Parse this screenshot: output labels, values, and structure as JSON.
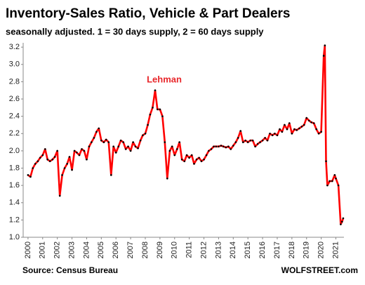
{
  "chart_data": {
    "type": "line",
    "title": "Inventory-Sales Ratio, Vehicle & Part Dealers",
    "subtitle": "seasonally adjusted. 1 = 30 days supply, 2 = 60 days supply",
    "source": "Source: Census Bureau",
    "brand": "WOLFSTREET.com",
    "annotation": "Lehman",
    "x": [
      2000,
      2000.17,
      2000.33,
      2000.5,
      2000.67,
      2000.83,
      2001,
      2001.17,
      2001.33,
      2001.5,
      2001.67,
      2001.83,
      2002,
      2002.17,
      2002.33,
      2002.5,
      2002.67,
      2002.83,
      2003,
      2003.17,
      2003.33,
      2003.5,
      2003.67,
      2003.83,
      2004,
      2004.17,
      2004.33,
      2004.5,
      2004.67,
      2004.83,
      2005,
      2005.17,
      2005.33,
      2005.5,
      2005.67,
      2005.83,
      2006,
      2006.17,
      2006.33,
      2006.5,
      2006.67,
      2006.83,
      2007,
      2007.17,
      2007.33,
      2007.5,
      2007.67,
      2007.83,
      2008,
      2008.17,
      2008.33,
      2008.5,
      2008.67,
      2008.83,
      2009,
      2009.17,
      2009.33,
      2009.5,
      2009.67,
      2009.83,
      2010,
      2010.17,
      2010.33,
      2010.5,
      2010.67,
      2010.83,
      2011,
      2011.17,
      2011.33,
      2011.5,
      2011.67,
      2011.83,
      2012,
      2012.17,
      2012.33,
      2012.5,
      2012.67,
      2012.83,
      2013,
      2013.17,
      2013.33,
      2013.5,
      2013.67,
      2013.83,
      2014,
      2014.17,
      2014.33,
      2014.5,
      2014.67,
      2014.83,
      2015,
      2015.17,
      2015.33,
      2015.5,
      2015.67,
      2015.83,
      2016,
      2016.17,
      2016.33,
      2016.5,
      2016.67,
      2016.83,
      2017,
      2017.17,
      2017.33,
      2017.5,
      2017.67,
      2017.83,
      2018,
      2018.17,
      2018.33,
      2018.5,
      2018.67,
      2018.83,
      2019,
      2019.17,
      2019.33,
      2019.5,
      2019.67,
      2019.83,
      2020,
      2020.17,
      2020.25,
      2020.33,
      2020.42,
      2020.58,
      2020.75,
      2020.92,
      2021,
      2021.17,
      2021.33,
      2021.42,
      2021.5
    ],
    "series": [
      {
        "name": "Inventory-Sales Ratio",
        "color": "#ff0000",
        "values": [
          1.72,
          1.7,
          1.8,
          1.85,
          1.88,
          1.92,
          1.95,
          2.02,
          1.9,
          1.88,
          1.9,
          1.93,
          2.0,
          1.48,
          1.72,
          1.8,
          1.85,
          1.93,
          1.78,
          2.0,
          1.98,
          1.95,
          2.02,
          2.0,
          1.9,
          2.05,
          2.1,
          2.15,
          2.22,
          2.26,
          2.12,
          2.1,
          2.13,
          2.1,
          1.72,
          2.05,
          1.98,
          2.05,
          2.12,
          2.1,
          2.02,
          2.05,
          2.0,
          2.1,
          2.05,
          2.03,
          2.12,
          2.18,
          2.2,
          2.3,
          2.42,
          2.5,
          2.7,
          2.48,
          2.48,
          2.4,
          2.1,
          1.68,
          2.0,
          2.05,
          1.95,
          2.02,
          2.1,
          1.9,
          1.88,
          1.95,
          1.92,
          1.95,
          1.85,
          1.9,
          1.92,
          1.88,
          1.9,
          1.95,
          2.0,
          2.02,
          2.05,
          2.05,
          2.05,
          2.06,
          2.05,
          2.04,
          2.05,
          2.02,
          2.06,
          2.1,
          2.15,
          2.23,
          2.1,
          2.12,
          2.1,
          2.12,
          2.12,
          2.05,
          2.08,
          2.1,
          2.12,
          2.15,
          2.12,
          2.2,
          2.18,
          2.2,
          2.18,
          2.25,
          2.22,
          2.3,
          2.25,
          2.32,
          2.2,
          2.25,
          2.24,
          2.26,
          2.28,
          2.3,
          2.38,
          2.35,
          2.33,
          2.32,
          2.25,
          2.2,
          2.22,
          3.1,
          3.22,
          1.88,
          1.6,
          1.65,
          1.65,
          1.72,
          1.68,
          1.6,
          1.15,
          1.18,
          1.22
        ]
      }
    ],
    "xlim": [
      1999.67,
      2021.55
    ],
    "xticks": [
      2000,
      2001,
      2002,
      2003,
      2004,
      2005,
      2006,
      2007,
      2008,
      2009,
      2010,
      2011,
      2012,
      2013,
      2014,
      2015,
      2016,
      2017,
      2018,
      2019,
      2020,
      2021
    ],
    "ylim": [
      1.0,
      3.25
    ],
    "yticks": [
      {
        "value": 1,
        "label": "1.0"
      },
      1.2,
      1.4,
      1.6,
      1.8,
      {
        "value": 2,
        "label": "2.0"
      },
      2.2,
      2.4,
      2.6,
      2.8,
      {
        "value": 3,
        "label": "3.0"
      },
      3.2
    ],
    "grid": false
  }
}
